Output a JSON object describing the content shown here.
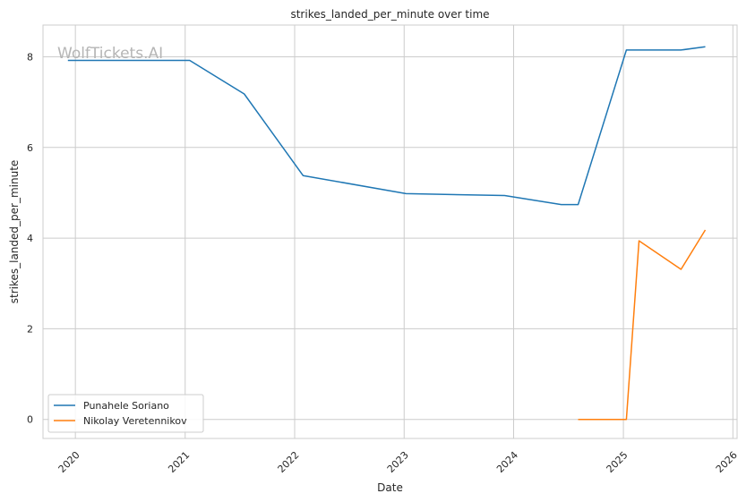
{
  "watermark": "WolfTickets.AI",
  "chart_data": {
    "type": "line",
    "title": "strikes_landed_per_minute over time",
    "xlabel": "Date",
    "ylabel": "strikes_landed_per_minute",
    "x_ticks": [
      "2020",
      "2021",
      "2022",
      "2023",
      "2024",
      "2025",
      "2026"
    ],
    "y_ticks": [
      "0",
      "2",
      "4",
      "6",
      "8"
    ],
    "xlim": [
      "2019-09-15",
      "2026-01-15"
    ],
    "ylim": [
      -0.42,
      8.7
    ],
    "grid": true,
    "legend_position": "lower-left",
    "series": [
      {
        "name": "Punahele Soriano",
        "color": "#1f77b4",
        "points": [
          {
            "x": "2019-12-07",
            "y": 7.92
          },
          {
            "x": "2021-01-16",
            "y": 7.92
          },
          {
            "x": "2021-07-17",
            "y": 7.18
          },
          {
            "x": "2022-01-29",
            "y": 5.38
          },
          {
            "x": "2023-01-07",
            "y": 4.98
          },
          {
            "x": "2023-12-02",
            "y": 4.94
          },
          {
            "x": "2024-06-08",
            "y": 4.74
          },
          {
            "x": "2024-08-03",
            "y": 4.74
          },
          {
            "x": "2025-01-11",
            "y": 8.15
          },
          {
            "x": "2025-07-12",
            "y": 8.15
          },
          {
            "x": "2025-10-01",
            "y": 8.22
          }
        ]
      },
      {
        "name": "Nikolay Veretennikov",
        "color": "#ff7f0e",
        "points": [
          {
            "x": "2024-08-03",
            "y": 0.0
          },
          {
            "x": "2025-01-11",
            "y": 0.0
          },
          {
            "x": "2025-02-22",
            "y": 3.94
          },
          {
            "x": "2025-07-12",
            "y": 3.31
          },
          {
            "x": "2025-10-01",
            "y": 4.18
          }
        ]
      }
    ]
  }
}
